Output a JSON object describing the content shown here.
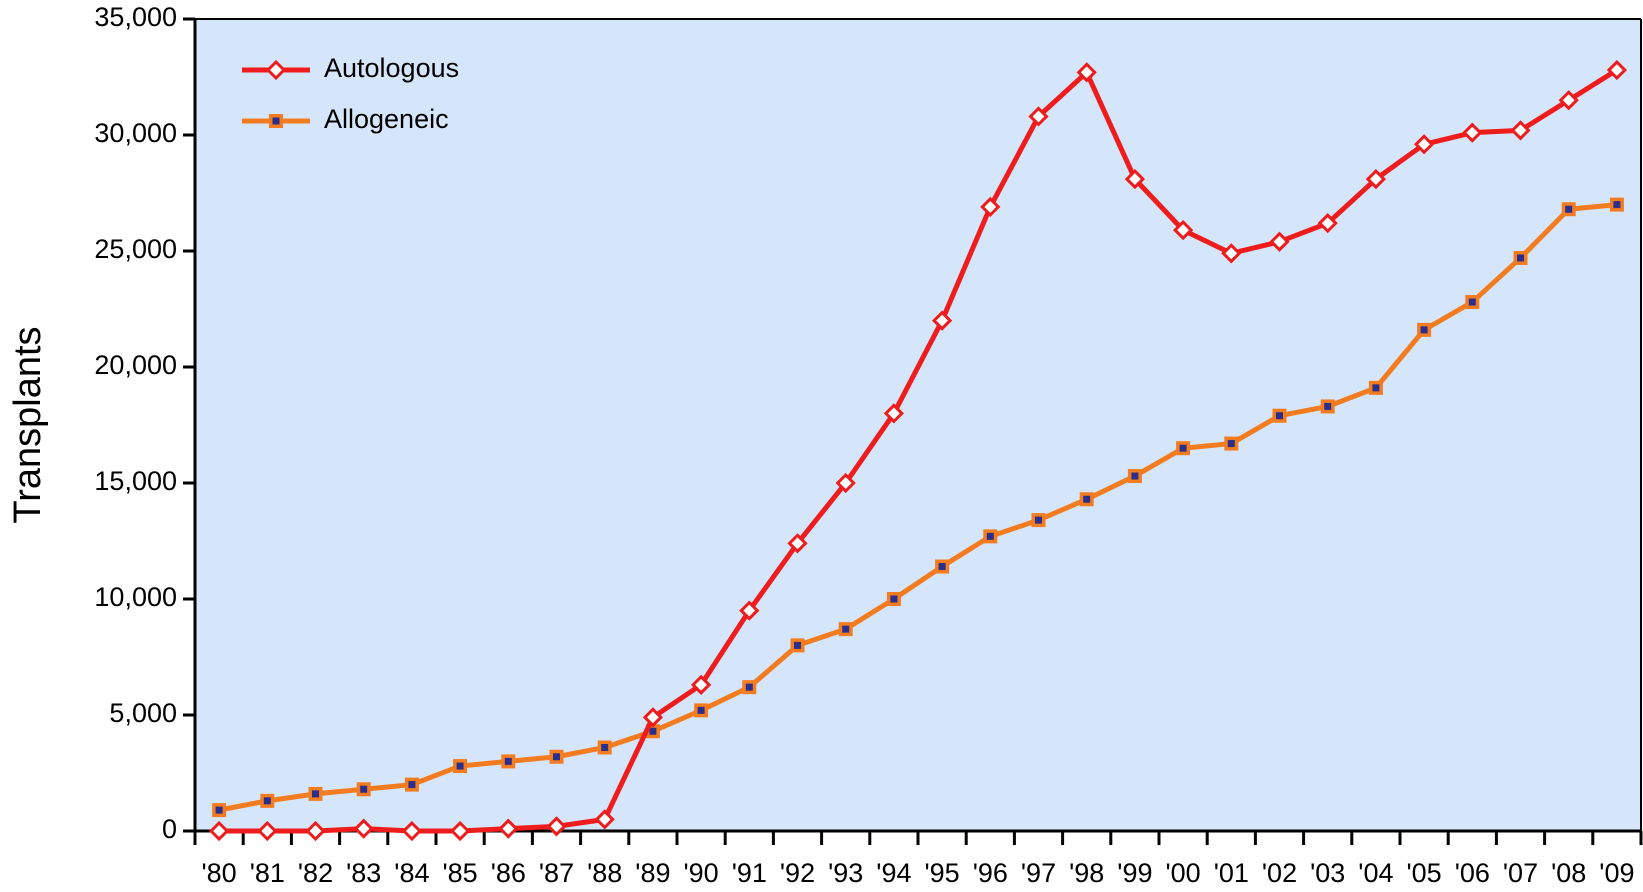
{
  "chart_data": {
    "type": "line",
    "y_label": "Transplants",
    "categories": [
      "'80",
      "'81",
      "'82",
      "'83",
      "'84",
      "'85",
      "'86",
      "'87",
      "'88",
      "'89",
      "'90",
      "'91",
      "'92",
      "'93",
      "'94",
      "'95",
      "'96",
      "'97",
      "'98",
      "'99",
      "'00",
      "'01",
      "'02",
      "'03",
      "'04",
      "'05",
      "'06",
      "'07",
      "'08",
      "'09"
    ],
    "series": [
      {
        "name": "Autologous",
        "color": "#ee1c1c",
        "marker": "diamond",
        "values": [
          0,
          0,
          0,
          100,
          0,
          0,
          100,
          200,
          500,
          4900,
          6300,
          9500,
          12400,
          15000,
          18000,
          22000,
          26900,
          30800,
          32700,
          28100,
          25900,
          24900,
          25400,
          26200,
          28100,
          29600,
          30100,
          30200,
          31500,
          32800
        ]
      },
      {
        "name": "Allogeneic",
        "color": "#f47c20",
        "marker": "square",
        "values": [
          900,
          1300,
          1600,
          1800,
          2000,
          2800,
          3000,
          3200,
          3600,
          4300,
          5200,
          6200,
          8000,
          8700,
          10000,
          11400,
          12700,
          13400,
          14300,
          15300,
          16500,
          16700,
          17900,
          18300,
          19100,
          21600,
          22800,
          24700,
          26800,
          27000
        ]
      }
    ],
    "ylim": [
      0,
      35000
    ],
    "yticks": [
      0,
      {
        "value": 5000,
        "label": "5,000"
      },
      {
        "value": 10000,
        "label": "10,000"
      },
      {
        "value": 15000,
        "label": "15,000"
      },
      {
        "value": 20000,
        "label": "20,000"
      },
      {
        "value": 25000,
        "label": "25,000"
      },
      {
        "value": 30000,
        "label": "30,000"
      },
      {
        "value": 35000,
        "label": "35,000"
      }
    ],
    "legend": "upper left",
    "background": "#d6e6fa"
  }
}
